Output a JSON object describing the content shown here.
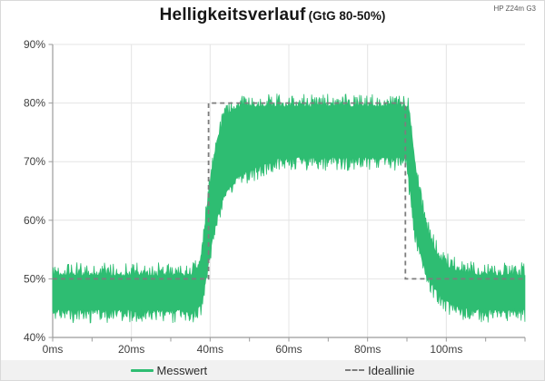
{
  "header": {
    "title": "Helligkeitsverlauf",
    "subtitle": "(GtG 80-50%)",
    "device": "HP Z24m G3"
  },
  "legend": {
    "items": [
      {
        "label": "Messwert",
        "type": "line",
        "color": "#2ebd72"
      },
      {
        "label": "Ideallinie",
        "type": "dashed",
        "color": "#7d7d7d"
      }
    ]
  },
  "colors": {
    "measurement_green": "#2ebd72",
    "ideal_gray": "#7d7d7d",
    "grid": "#e4e4e4",
    "axis": "#9b9b9b",
    "text": "#3f3f3f",
    "legend_bg": "#f1f1f1"
  },
  "chart_data": {
    "type": "area",
    "title": "Helligkeitsverlauf (GtG 80-50%)",
    "xlabel": "",
    "ylabel": "",
    "x_unit": "ms",
    "y_unit": "%",
    "xlim": [
      0,
      120
    ],
    "ylim": [
      40,
      90
    ],
    "x_tick_minor_step": 10,
    "x_label_step": 20,
    "x_tick_labels": [
      "0ms",
      "20ms",
      "40ms",
      "60ms",
      "80ms",
      "100ms"
    ],
    "y_tick_labels": [
      "40%",
      "50%",
      "60%",
      "70%",
      "80%",
      "90%"
    ],
    "grid": true,
    "legend_position": "bottom",
    "series": [
      {
        "name": "Messwert",
        "kind": "noisy-band",
        "color": "#2ebd72",
        "note": "rapidly oscillating brightness signal; envelope keyframes as [time_ms, min_percent, max_percent]",
        "envelope": [
          [
            0,
            44.3,
            51.0
          ],
          [
            36,
            44.3,
            51.0
          ],
          [
            37.5,
            45.0,
            53.0
          ],
          [
            38.5,
            48.0,
            58.0
          ],
          [
            39.5,
            52.0,
            64.0
          ],
          [
            40.5,
            56.0,
            69.0
          ],
          [
            41.5,
            59.5,
            73.0
          ],
          [
            43,
            63.0,
            76.5
          ],
          [
            45,
            65.5,
            78.8
          ],
          [
            47,
            67.0,
            79.6
          ],
          [
            50,
            68.2,
            79.8
          ],
          [
            54,
            69.3,
            79.8
          ],
          [
            58,
            70.3,
            79.8
          ],
          [
            89.8,
            70.3,
            79.8
          ],
          [
            90.6,
            66.0,
            79.0
          ],
          [
            91.4,
            61.0,
            74.0
          ],
          [
            92.5,
            56.5,
            67.5
          ],
          [
            94,
            52.5,
            62.0
          ],
          [
            95.5,
            50.0,
            58.0
          ],
          [
            97,
            48.0,
            55.3
          ],
          [
            99,
            46.4,
            53.2
          ],
          [
            101,
            45.4,
            52.2
          ],
          [
            104,
            44.8,
            51.5
          ],
          [
            108,
            44.4,
            51.1
          ],
          [
            114,
            44.3,
            51.0
          ],
          [
            120,
            44.3,
            51.0
          ]
        ]
      },
      {
        "name": "Ideallinie",
        "kind": "step-dashed",
        "color": "#7d7d7d",
        "points": [
          [
            0,
            50
          ],
          [
            39.6,
            50
          ],
          [
            39.6,
            80
          ],
          [
            89.6,
            80
          ],
          [
            89.6,
            50
          ],
          [
            120,
            50
          ]
        ]
      }
    ],
    "noise": {
      "seed": 42,
      "step_ms": 0.14,
      "base": 0.45,
      "spike": 2.3
    }
  }
}
